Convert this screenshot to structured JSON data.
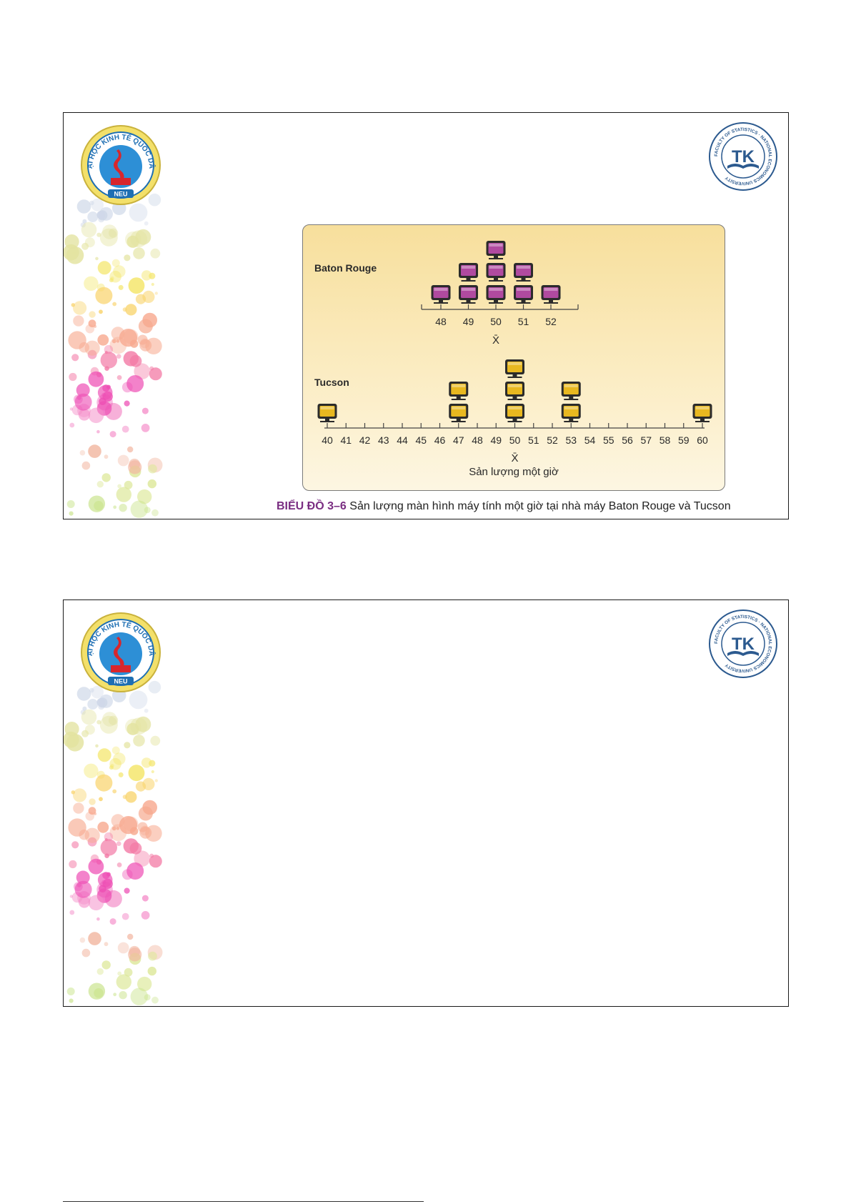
{
  "slides": [
    {
      "caption": {
        "label": "BIỂU ĐỒ 3–6",
        "text": "Sản lượng màn hình máy tính một giờ tại nhà máy Baton Rouge và Tucson"
      },
      "left_logo": {
        "name": "neu-university-logo",
        "text": "ĐẠI HỌC KINH TẾ QUỐC DÂN",
        "badge": "NEU"
      },
      "right_logo": {
        "name": "faculty-of-statistics-logo",
        "text": "FACULTY OF STATISTICS · NATIONAL ECONOMICS UNIVERSITY",
        "mark": "TK"
      },
      "chart_data": {
        "type": "scatter",
        "title": "",
        "xlabel": "Sản lượng một giờ",
        "mean_symbol": "X̄",
        "colors": {
          "baton_rouge": "#b04aa0",
          "tucson": "#e8b820"
        },
        "series": [
          {
            "name": "Baton Rouge",
            "x_ticks": [
              48,
              49,
              50,
              51,
              52
            ],
            "points": [
              {
                "x": 48,
                "count": 1
              },
              {
                "x": 49,
                "count": 2
              },
              {
                "x": 50,
                "count": 3
              },
              {
                "x": 51,
                "count": 2
              },
              {
                "x": 52,
                "count": 1
              }
            ],
            "mean": 50
          },
          {
            "name": "Tucson",
            "x_ticks": [
              40,
              41,
              42,
              43,
              44,
              45,
              46,
              47,
              48,
              49,
              50,
              51,
              52,
              53,
              54,
              55,
              56,
              57,
              58,
              59,
              60
            ],
            "points": [
              {
                "x": 40,
                "count": 1
              },
              {
                "x": 47,
                "count": 2
              },
              {
                "x": 50,
                "count": 3
              },
              {
                "x": 53,
                "count": 2
              },
              {
                "x": 60,
                "count": 1
              }
            ],
            "mean": 50
          }
        ]
      }
    },
    {
      "left_logo": {
        "name": "neu-university-logo",
        "text": "ĐẠI HỌC KINH TẾ QUỐC DÂN",
        "badge": "NEU"
      },
      "right_logo": {
        "name": "faculty-of-statistics-logo",
        "text": "FACULTY OF STATISTICS · NATIONAL ECONOMICS UNIVERSITY",
        "mark": "TK"
      }
    }
  ]
}
